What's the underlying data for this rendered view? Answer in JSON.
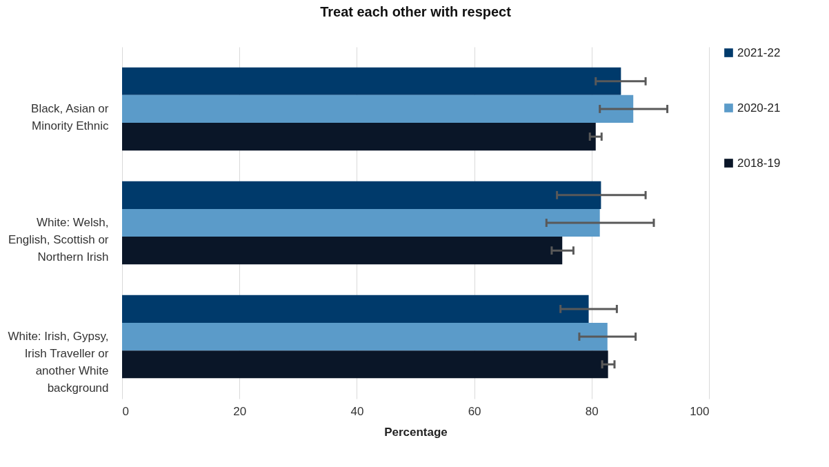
{
  "chart_data": {
    "type": "bar",
    "orientation": "horizontal",
    "title": "Treat each other with respect",
    "xlabel": "Percentage",
    "categories": [
      "Black, Asian or Minority Ethnic",
      "White: Welsh, English, Scottish or Northern Irish",
      "White: Irish, Gypsy, Irish Traveller or another White background"
    ],
    "series": [
      {
        "name": "2021-22",
        "color": "#003a6b",
        "values": [
          85.0,
          81.6,
          79.5
        ],
        "errors": [
          [
            80.7,
            89.2
          ],
          [
            74.1,
            89.2
          ],
          [
            74.7,
            84.3
          ]
        ]
      },
      {
        "name": "2020-21",
        "color": "#5b9bc9",
        "values": [
          87.1,
          81.4,
          82.7
        ],
        "errors": [
          [
            81.4,
            92.9
          ],
          [
            72.3,
            90.6
          ],
          [
            77.9,
            87.5
          ]
        ]
      },
      {
        "name": "2018-19",
        "color": "#0a1628",
        "values": [
          80.7,
          75.0,
          82.8
        ],
        "errors": [
          [
            79.7,
            81.7
          ],
          [
            73.2,
            76.9
          ],
          [
            81.8,
            83.9
          ]
        ]
      }
    ],
    "xlim": [
      0,
      100
    ],
    "xticks": [
      0,
      20,
      40,
      60,
      80,
      100
    ],
    "grid": "x",
    "legend": "right"
  }
}
